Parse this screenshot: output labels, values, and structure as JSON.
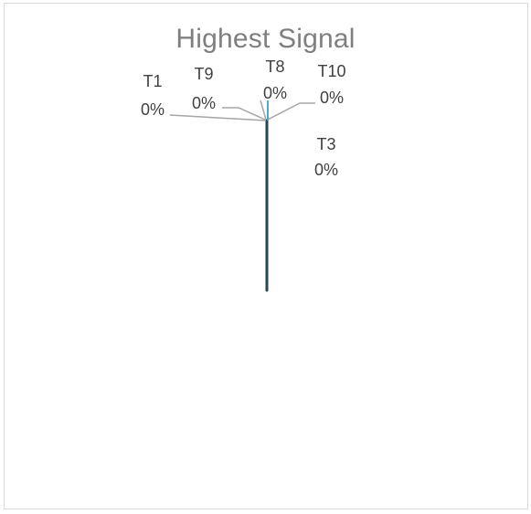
{
  "chart_data": {
    "type": "pie",
    "title": "Highest Signal",
    "slices": [
      {
        "name": "T1",
        "value": 0,
        "label": "0%"
      },
      {
        "name": "T9",
        "value": 0,
        "label": "0%"
      },
      {
        "name": "T8",
        "value": 0,
        "label": "0%"
      },
      {
        "name": "T10",
        "value": 0,
        "label": "0%"
      },
      {
        "name": "T3",
        "value": 0,
        "label": "0%"
      }
    ],
    "colors": {
      "leader_line": "#a6a6a6",
      "slice_edge": "#264653",
      "slice_accent": "#4bacc6"
    }
  }
}
